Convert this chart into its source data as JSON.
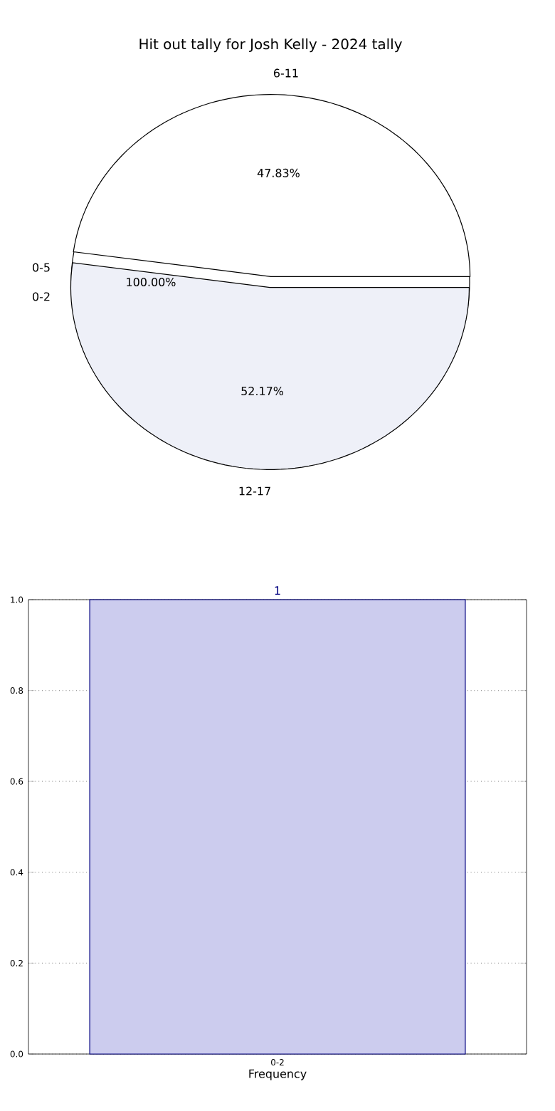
{
  "chart_data": [
    {
      "type": "pie",
      "title": "Hit out tally for Josh Kelly - 2024 tally",
      "categories": [
        "0-2"
      ],
      "values": [
        100
      ],
      "colors": [
        "#ffffff"
      ],
      "value_labels": [
        "100.00%"
      ]
    },
    {
      "type": "pie",
      "categories": [
        "6-11",
        "12-17"
      ],
      "values": [
        47.83,
        52.17
      ],
      "colors": [
        "#ffffff",
        "#eef0f8"
      ],
      "value_labels": [
        "47.83%",
        "52.17%"
      ],
      "annotations": [
        "0-5"
      ]
    },
    {
      "type": "bar",
      "categories": [
        "0-2"
      ],
      "values": [
        1
      ],
      "color": "#ccccee",
      "value_labels": [
        "1"
      ],
      "xlabel": "Frequency",
      "ylim": [
        0,
        1
      ],
      "yticks": [
        {
          "value": 0,
          "label": "0.0"
        },
        0.2,
        0.4,
        0.6,
        0.8,
        {
          "value": 1,
          "label": "1.0"
        }
      ],
      "grid": true
    }
  ]
}
